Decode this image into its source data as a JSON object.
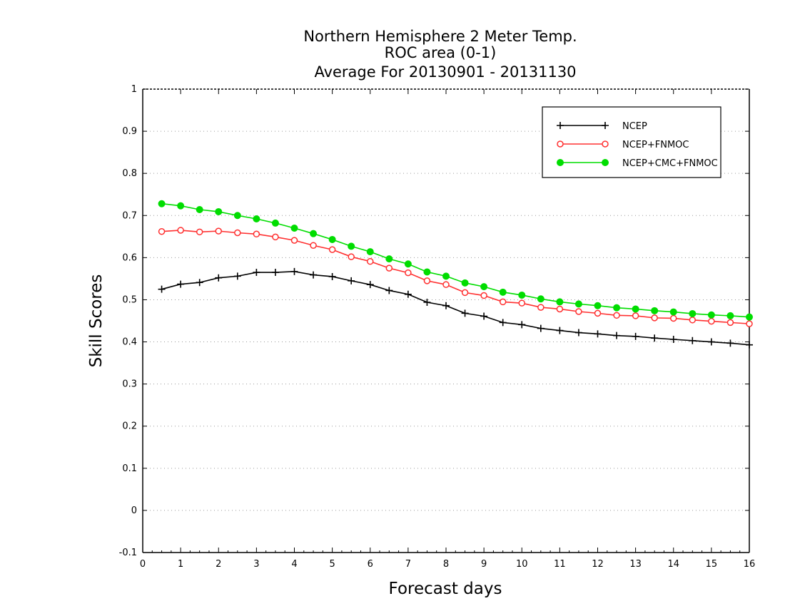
{
  "chart_data": {
    "type": "line",
    "title": [
      "Northern Hemisphere 2 Meter Temp.",
      "ROC area (0-1)",
      "Average For 20130901 - 20131130"
    ],
    "xlabel": "Forecast days",
    "ylabel": "Skill Scores",
    "xlim": [
      0,
      16
    ],
    "ylim": [
      -0.1,
      1
    ],
    "xticks": [
      0,
      1,
      2,
      3,
      4,
      5,
      6,
      7,
      8,
      9,
      10,
      11,
      12,
      13,
      14,
      15,
      16
    ],
    "xtick_labels": [
      "0",
      "1",
      "2",
      "3",
      "4",
      "5",
      "6",
      "7",
      "8",
      "9",
      "10",
      "11",
      "12",
      "13",
      "14",
      "15",
      "16"
    ],
    "yticks": [
      -0.1,
      0,
      0.1,
      0.2,
      0.3,
      0.4,
      0.5,
      0.6,
      0.7,
      0.8,
      0.9,
      1
    ],
    "ytick_labels": [
      "-0.1",
      "0",
      "0.1",
      "0.2",
      "0.3",
      "0.4",
      "0.5",
      "0.6",
      "0.7",
      "0.8",
      "0.9",
      "1"
    ],
    "grid": "horizontal-dotted",
    "legend_position": "top-right",
    "x": [
      0.5,
      1,
      1.5,
      2,
      2.5,
      3,
      3.5,
      4,
      4.5,
      5,
      5.5,
      6,
      6.5,
      7,
      7.5,
      8,
      8.5,
      9,
      9.5,
      10,
      10.5,
      11,
      11.5,
      12,
      12.5,
      13,
      13.5,
      14,
      14.5,
      15,
      15.5,
      16
    ],
    "series": [
      {
        "name": "NCEP",
        "color": "#000000",
        "marker": "plus",
        "values": [
          0.525,
          0.537,
          0.541,
          0.552,
          0.556,
          0.565,
          0.565,
          0.567,
          0.559,
          0.555,
          0.545,
          0.536,
          0.522,
          0.513,
          0.494,
          0.486,
          0.468,
          0.461,
          0.446,
          0.441,
          0.432,
          0.427,
          0.422,
          0.419,
          0.415,
          0.413,
          0.409,
          0.406,
          0.403,
          0.4,
          0.397,
          0.393
        ]
      },
      {
        "name": "NCEP+FNMOC",
        "color": "#ff3030",
        "marker": "open-circle",
        "values": [
          0.662,
          0.665,
          0.661,
          0.663,
          0.659,
          0.656,
          0.649,
          0.641,
          0.629,
          0.619,
          0.602,
          0.591,
          0.575,
          0.564,
          0.545,
          0.536,
          0.517,
          0.51,
          0.495,
          0.492,
          0.482,
          0.478,
          0.472,
          0.468,
          0.463,
          0.462,
          0.457,
          0.456,
          0.452,
          0.449,
          0.446,
          0.443
        ]
      },
      {
        "name": "NCEP+CMC+FNMOC",
        "color": "#00dd00",
        "marker": "filled-circle",
        "values": [
          0.728,
          0.723,
          0.714,
          0.709,
          0.7,
          0.692,
          0.682,
          0.67,
          0.657,
          0.643,
          0.627,
          0.614,
          0.597,
          0.585,
          0.566,
          0.556,
          0.54,
          0.531,
          0.518,
          0.511,
          0.502,
          0.495,
          0.49,
          0.486,
          0.481,
          0.478,
          0.474,
          0.471,
          0.467,
          0.464,
          0.462,
          0.459
        ]
      }
    ]
  }
}
